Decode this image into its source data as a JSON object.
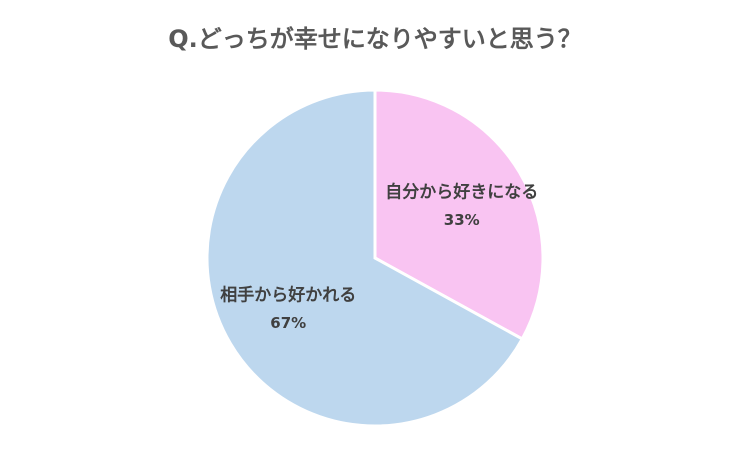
{
  "chart_data": {
    "type": "pie",
    "title": "Q.どっちが幸せになりやすいと思う？",
    "categories": [
      "自分から好きになる",
      "相手から好かれる"
    ],
    "values": [
      33,
      67
    ],
    "value_labels": [
      "33%",
      "67%"
    ],
    "colors": [
      "#f9c4f2",
      "#bdd7ee"
    ]
  }
}
